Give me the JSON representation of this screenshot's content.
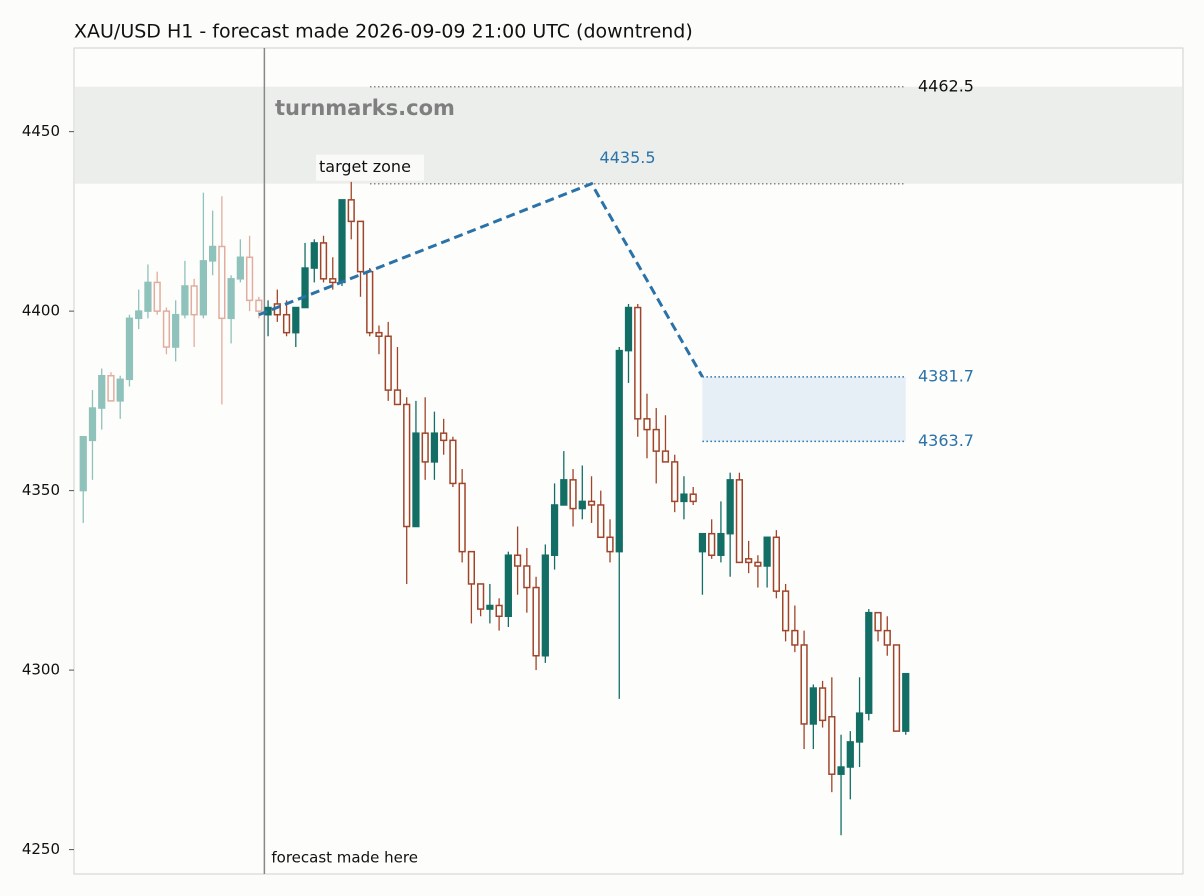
{
  "chart_data": {
    "type": "candlestick",
    "title": "XAU/USD H1 - forecast made 2026-09-09 21:00 UTC (downtrend)",
    "watermark": "turnmarks.com",
    "ylim": [
      4243.2,
      4473.3
    ],
    "yticks": [
      4250,
      4300,
      4350,
      4400,
      4450
    ],
    "xlim": [
      -1,
      119
    ],
    "colors": {
      "up": "#136e65",
      "down": "#a0452a",
      "up_faded": "#8fc2ba",
      "down_faded": "#e2ad9e",
      "forecast": "#2a72a8"
    },
    "open": [
      4350,
      4364,
      4373,
      4382,
      4375,
      4381,
      4398,
      4400,
      4408,
      4400,
      4390,
      4399,
      4407,
      4399,
      4414,
      4418,
      4398,
      4409,
      4415,
      4403,
      4399,
      4402,
      4399,
      4394,
      4401,
      4412,
      4419,
      4409,
      4408,
      4431,
      4425,
      4411,
      4394,
      4393,
      4378,
      4374,
      4340,
      4366,
      4358,
      4366,
      4364,
      4352,
      4333,
      4324,
      4317,
      4318,
      4315,
      4332,
      4329,
      4323,
      4304,
      4332,
      4346,
      4353,
      4345,
      4347,
      4346,
      4337,
      4333,
      4389,
      4401,
      4370,
      4367,
      4361,
      4358,
      4347,
      4349,
      4333,
      4338,
      4332,
      4338,
      4353,
      4331,
      4330,
      4329,
      4337,
      4322,
      4311,
      4307,
      4285,
      4295,
      4287,
      4271,
      4273,
      4280,
      4288,
      4316,
      4311,
      4307,
      4283
    ],
    "high": [
      4365,
      4378,
      4384,
      4383,
      4382,
      4399,
      4406,
      4413,
      4411,
      4401,
      4403,
      4414,
      4409,
      4433,
      4428,
      4432,
      4410,
      4420,
      4421,
      4404,
      4403,
      4406,
      4403,
      4401,
      4419,
      4420,
      4421,
      4415,
      4431,
      4436,
      4425,
      4412,
      4396,
      4397,
      4390,
      4376,
      4375,
      4376,
      4372,
      4370,
      4365,
      4356,
      4333,
      4324,
      4324,
      4320,
      4333,
      4340,
      4334,
      4326,
      4335,
      4352,
      4361,
      4356,
      4357,
      4354,
      4350,
      4342,
      4390,
      4402,
      4402,
      4377,
      4373,
      4371,
      4360,
      4354,
      4351,
      4338,
      4342,
      4347,
      4355,
      4355,
      4336,
      4332,
      4337,
      4339,
      4324,
      4318,
      4311,
      4296,
      4297,
      4298,
      4282,
      4283,
      4298,
      4317,
      4316,
      4315,
      4307,
      4299
    ],
    "low": [
      4341,
      4353,
      4367,
      4375,
      4370,
      4379,
      4395,
      4398,
      4399,
      4388,
      4386,
      4398,
      4390,
      4398,
      4410,
      4374,
      4391,
      4408,
      4400,
      4398,
      4393,
      4397,
      4393,
      4390,
      4401,
      4408,
      4408,
      4406,
      4407,
      4420,
      4404,
      4393,
      4388,
      4375,
      4374,
      4324,
      4340,
      4353,
      4353,
      4360,
      4351,
      4330,
      4313,
      4315,
      4313,
      4311,
      4312,
      4321,
      4316,
      4300,
      4302,
      4328,
      4346,
      4340,
      4342,
      4341,
      4337,
      4330,
      4292,
      4380,
      4365,
      4359,
      4352,
      4358,
      4344,
      4342,
      4346,
      4321,
      4331,
      4330,
      4326,
      4330,
      4327,
      4323,
      4323,
      4320,
      4308,
      4305,
      4278,
      4278,
      4284,
      4266,
      4254,
      4264,
      4273,
      4286,
      4308,
      4304,
      4283,
      4282
    ],
    "close": [
      4365,
      4373,
      4382,
      4375,
      4381,
      4398,
      4400,
      4408,
      4400,
      4390,
      4399,
      4407,
      4399,
      4414,
      4418,
      4398,
      4409,
      4415,
      4403,
      4400,
      4401,
      4399,
      4394,
      4401,
      4412,
      4419,
      4409,
      4408,
      4431,
      4425,
      4411,
      4394,
      4393,
      4378,
      4374,
      4340,
      4366,
      4358,
      4366,
      4364,
      4352,
      4333,
      4324,
      4317,
      4318,
      4315,
      4332,
      4329,
      4323,
      4304,
      4332,
      4346,
      4353,
      4345,
      4347,
      4346,
      4337,
      4333,
      4389,
      4401,
      4370,
      4367,
      4361,
      4358,
      4347,
      4349,
      4347,
      4338,
      4332,
      4338,
      4353,
      4330,
      4330,
      4329,
      4337,
      4322,
      4311,
      4307,
      4285,
      4295,
      4286,
      4271,
      4273,
      4280,
      4288,
      4316,
      4311,
      4307,
      4283,
      4299
    ],
    "forecast_marker": {
      "label": "forecast made here",
      "x": 19.6
    },
    "forecast": {
      "x": [
        19,
        55,
        67
      ],
      "values": [
        4399,
        4435.5,
        4381.7
      ]
    },
    "target_zone": {
      "label": "target zone",
      "low": 4435.5,
      "high": 4462.5
    },
    "range_zone": {
      "x": [
        67,
        89
      ],
      "low": 4363.7,
      "high": 4381.7
    }
  }
}
